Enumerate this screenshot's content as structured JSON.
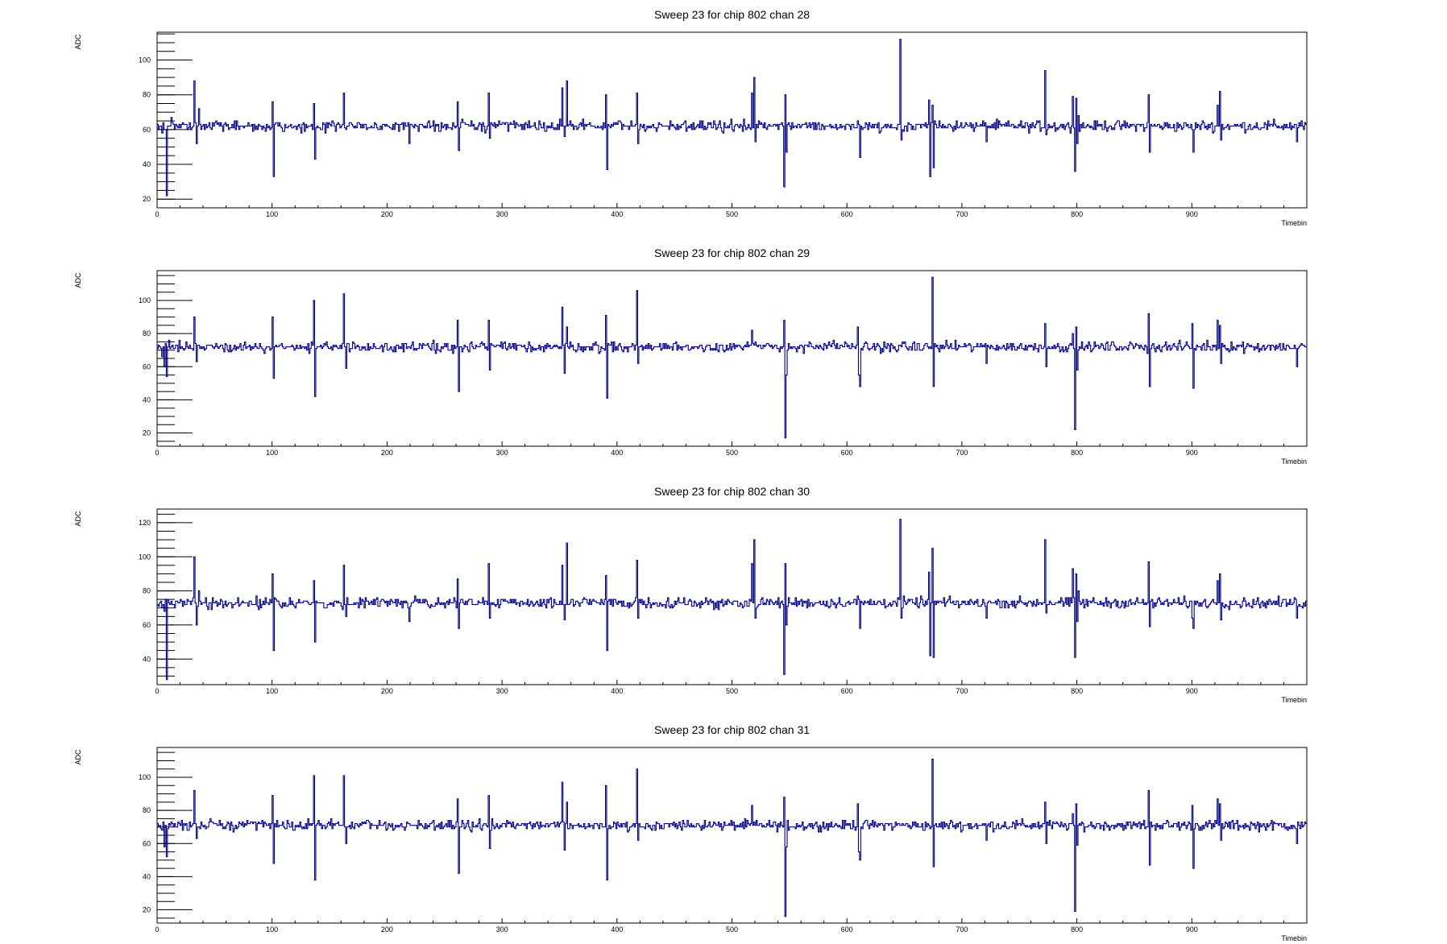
{
  "chart_data": [
    {
      "type": "line",
      "title": "Sweep 23 for chip 802 chan 28",
      "xlabel": "Timebin",
      "ylabel": "ADC",
      "xlim": [
        0,
        1000
      ],
      "ylim": [
        15,
        116
      ],
      "xticks": [
        0,
        100,
        200,
        300,
        400,
        500,
        600,
        700,
        800,
        900
      ],
      "xtick_labels": [
        "0",
        "100",
        "200",
        "300",
        "400",
        "500",
        "600",
        "700",
        "800",
        "900"
      ],
      "yticks": [
        20,
        40,
        60,
        80,
        100
      ],
      "ytick_labels": [
        "20",
        "40",
        "60",
        "80",
        "100"
      ],
      "series_color": "#000080",
      "baseline": 62,
      "noise": 2,
      "seed": 28,
      "spikes": [
        [
          2,
          62
        ],
        [
          4,
          58
        ],
        [
          6,
          60
        ],
        [
          8,
          22
        ],
        [
          10,
          62
        ],
        [
          12,
          67
        ],
        [
          32,
          88
        ],
        [
          34,
          52
        ],
        [
          36,
          72
        ],
        [
          100,
          76
        ],
        [
          101,
          33
        ],
        [
          136,
          75
        ],
        [
          137,
          43
        ],
        [
          162,
          81
        ],
        [
          164,
          60
        ],
        [
          219,
          52
        ],
        [
          261,
          76
        ],
        [
          262,
          48
        ],
        [
          288,
          81
        ],
        [
          289,
          55
        ],
        [
          352,
          84
        ],
        [
          354,
          56
        ],
        [
          356,
          88
        ],
        [
          390,
          80
        ],
        [
          391,
          37
        ],
        [
          417,
          81
        ],
        [
          418,
          52
        ],
        [
          517,
          81
        ],
        [
          519,
          90
        ],
        [
          520,
          53
        ],
        [
          545,
          27
        ],
        [
          546,
          80
        ],
        [
          547,
          47
        ],
        [
          609,
          65
        ],
        [
          611,
          44
        ],
        [
          646,
          112
        ],
        [
          647,
          54
        ],
        [
          671,
          77
        ],
        [
          672,
          33
        ],
        [
          674,
          74
        ],
        [
          675,
          38
        ],
        [
          721,
          53
        ],
        [
          772,
          94
        ],
        [
          773,
          57
        ],
        [
          796,
          79
        ],
        [
          798,
          36
        ],
        [
          799,
          78
        ],
        [
          800,
          52
        ],
        [
          801,
          68
        ],
        [
          862,
          80
        ],
        [
          863,
          47
        ],
        [
          900,
          60
        ],
        [
          901,
          47
        ],
        [
          922,
          74
        ],
        [
          924,
          82
        ],
        [
          925,
          54
        ],
        [
          991,
          53
        ]
      ]
    },
    {
      "type": "line",
      "title": "Sweep 23 for chip 802 chan 29",
      "xlabel": "Timebin",
      "ylabel": "ADC",
      "xlim": [
        0,
        1000
      ],
      "ylim": [
        12,
        118
      ],
      "xticks": [
        0,
        100,
        200,
        300,
        400,
        500,
        600,
        700,
        800,
        900
      ],
      "xtick_labels": [
        "0",
        "100",
        "200",
        "300",
        "400",
        "500",
        "600",
        "700",
        "800",
        "900"
      ],
      "yticks": [
        20,
        40,
        60,
        80,
        100
      ],
      "ytick_labels": [
        "20",
        "40",
        "60",
        "80",
        "100"
      ],
      "series_color": "#000080",
      "baseline": 72,
      "noise": 2,
      "seed": 29,
      "spikes": [
        [
          2,
          72
        ],
        [
          4,
          66
        ],
        [
          6,
          60
        ],
        [
          8,
          54
        ],
        [
          10,
          76
        ],
        [
          32,
          90
        ],
        [
          34,
          63
        ],
        [
          100,
          90
        ],
        [
          101,
          53
        ],
        [
          136,
          100
        ],
        [
          137,
          42
        ],
        [
          162,
          104
        ],
        [
          164,
          59
        ],
        [
          261,
          88
        ],
        [
          262,
          45
        ],
        [
          288,
          88
        ],
        [
          289,
          58
        ],
        [
          352,
          96
        ],
        [
          354,
          56
        ],
        [
          356,
          84
        ],
        [
          390,
          91
        ],
        [
          391,
          41
        ],
        [
          417,
          106
        ],
        [
          418,
          62
        ],
        [
          517,
          82
        ],
        [
          545,
          88
        ],
        [
          546,
          17
        ],
        [
          547,
          55
        ],
        [
          609,
          84
        ],
        [
          610,
          55
        ],
        [
          611,
          48
        ],
        [
          674,
          114
        ],
        [
          675,
          48
        ],
        [
          721,
          62
        ],
        [
          772,
          86
        ],
        [
          773,
          60
        ],
        [
          796,
          80
        ],
        [
          798,
          22
        ],
        [
          799,
          84
        ],
        [
          800,
          58
        ],
        [
          862,
          92
        ],
        [
          863,
          48
        ],
        [
          900,
          86
        ],
        [
          901,
          47
        ],
        [
          922,
          88
        ],
        [
          924,
          85
        ],
        [
          925,
          62
        ],
        [
          991,
          60
        ]
      ]
    },
    {
      "type": "line",
      "title": "Sweep 23 for chip 802 chan 30",
      "xlabel": "Timebin",
      "ylabel": "ADC",
      "xlim": [
        0,
        1000
      ],
      "ylim": [
        25,
        128
      ],
      "xticks": [
        0,
        100,
        200,
        300,
        400,
        500,
        600,
        700,
        800,
        900
      ],
      "xtick_labels": [
        "0",
        "100",
        "200",
        "300",
        "400",
        "500",
        "600",
        "700",
        "800",
        "900"
      ],
      "yticks": [
        40,
        60,
        80,
        100,
        120
      ],
      "ytick_labels": [
        "40",
        "60",
        "80",
        "100",
        "120"
      ],
      "series_color": "#000080",
      "baseline": 73,
      "noise": 2,
      "seed": 30,
      "spikes": [
        [
          2,
          73
        ],
        [
          4,
          70
        ],
        [
          6,
          68
        ],
        [
          8,
          28
        ],
        [
          10,
          73
        ],
        [
          12,
          74
        ],
        [
          32,
          100
        ],
        [
          34,
          60
        ],
        [
          36,
          80
        ],
        [
          100,
          90
        ],
        [
          101,
          45
        ],
        [
          136,
          86
        ],
        [
          137,
          50
        ],
        [
          162,
          95
        ],
        [
          164,
          65
        ],
        [
          219,
          62
        ],
        [
          261,
          87
        ],
        [
          262,
          58
        ],
        [
          288,
          96
        ],
        [
          289,
          64
        ],
        [
          352,
          95
        ],
        [
          354,
          63
        ],
        [
          356,
          108
        ],
        [
          390,
          89
        ],
        [
          391,
          45
        ],
        [
          417,
          98
        ],
        [
          418,
          64
        ],
        [
          517,
          96
        ],
        [
          519,
          110
        ],
        [
          520,
          64
        ],
        [
          545,
          31
        ],
        [
          546,
          96
        ],
        [
          547,
          60
        ],
        [
          609,
          77
        ],
        [
          611,
          58
        ],
        [
          646,
          122
        ],
        [
          647,
          64
        ],
        [
          671,
          91
        ],
        [
          672,
          42
        ],
        [
          674,
          105
        ],
        [
          675,
          41
        ],
        [
          721,
          64
        ],
        [
          772,
          110
        ],
        [
          773,
          67
        ],
        [
          796,
          93
        ],
        [
          798,
          41
        ],
        [
          799,
          90
        ],
        [
          800,
          62
        ],
        [
          801,
          80
        ],
        [
          862,
          97
        ],
        [
          863,
          59
        ],
        [
          900,
          64
        ],
        [
          901,
          58
        ],
        [
          922,
          86
        ],
        [
          924,
          90
        ],
        [
          925,
          63
        ],
        [
          991,
          64
        ]
      ]
    },
    {
      "type": "line",
      "title": "Sweep 23 for chip 802 chan 31",
      "xlabel": "Timebin",
      "ylabel": "ADC",
      "xlim": [
        0,
        1000
      ],
      "ylim": [
        12,
        118
      ],
      "xticks": [
        0,
        100,
        200,
        300,
        400,
        500,
        600,
        700,
        800,
        900
      ],
      "xtick_labels": [
        "0",
        "100",
        "200",
        "300",
        "400",
        "500",
        "600",
        "700",
        "800",
        "900"
      ],
      "yticks": [
        20,
        40,
        60,
        80,
        100
      ],
      "ytick_labels": [
        "20",
        "40",
        "60",
        "80",
        "100"
      ],
      "series_color": "#000080",
      "baseline": 71,
      "noise": 2,
      "seed": 31,
      "spikes": [
        [
          2,
          71
        ],
        [
          4,
          68
        ],
        [
          6,
          58
        ],
        [
          8,
          52
        ],
        [
          10,
          72
        ],
        [
          32,
          92
        ],
        [
          34,
          63
        ],
        [
          100,
          89
        ],
        [
          101,
          48
        ],
        [
          136,
          101
        ],
        [
          137,
          38
        ],
        [
          162,
          101
        ],
        [
          164,
          60
        ],
        [
          261,
          87
        ],
        [
          262,
          42
        ],
        [
          288,
          89
        ],
        [
          289,
          57
        ],
        [
          352,
          97
        ],
        [
          354,
          56
        ],
        [
          356,
          85
        ],
        [
          390,
          95
        ],
        [
          391,
          38
        ],
        [
          417,
          105
        ],
        [
          418,
          62
        ],
        [
          517,
          83
        ],
        [
          545,
          88
        ],
        [
          546,
          16
        ],
        [
          547,
          58
        ],
        [
          609,
          84
        ],
        [
          610,
          55
        ],
        [
          611,
          50
        ],
        [
          674,
          111
        ],
        [
          675,
          46
        ],
        [
          721,
          62
        ],
        [
          772,
          85
        ],
        [
          773,
          60
        ],
        [
          796,
          78
        ],
        [
          798,
          19
        ],
        [
          799,
          84
        ],
        [
          800,
          59
        ],
        [
          862,
          92
        ],
        [
          863,
          47
        ],
        [
          900,
          83
        ],
        [
          901,
          45
        ],
        [
          922,
          87
        ],
        [
          924,
          84
        ],
        [
          925,
          62
        ],
        [
          991,
          60
        ]
      ]
    }
  ]
}
